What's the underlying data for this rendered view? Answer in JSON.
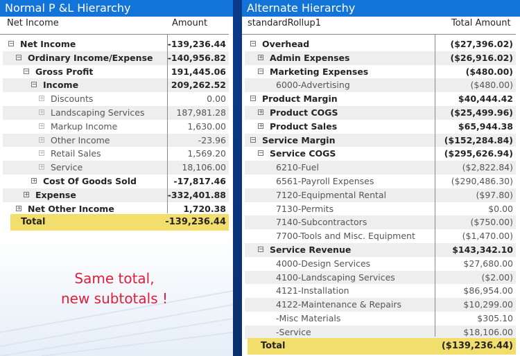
{
  "left": {
    "title": "Normal P &L Hierarchy",
    "col_label": "Net Income",
    "col_amount": "Amount",
    "rows": [
      {
        "label": "Net Income",
        "amount": "-139,236.44",
        "level": 0,
        "toggle": "⊟",
        "bold": true
      },
      {
        "label": "Ordinary Income/Expense",
        "amount": "-140,956.82",
        "level": 1,
        "toggle": "⊟",
        "bold": true
      },
      {
        "label": "Gross Profit",
        "amount": "191,445.06",
        "level": 2,
        "toggle": "⊟",
        "bold": true
      },
      {
        "label": "Income",
        "amount": "209,262.52",
        "level": 3,
        "toggle": "⊟",
        "bold": true
      },
      {
        "label": "Discounts",
        "amount": "0.00",
        "level": 4,
        "toggle": "⊞",
        "bold": false
      },
      {
        "label": "Landscaping Services",
        "amount": "187,981.28",
        "level": 4,
        "toggle": "⊞",
        "bold": false
      },
      {
        "label": "Markup Income",
        "amount": "1,630.00",
        "level": 4,
        "toggle": "⊞",
        "bold": false
      },
      {
        "label": "Other Income",
        "amount": "-23.96",
        "level": 4,
        "toggle": "⊞",
        "bold": false
      },
      {
        "label": "Retail Sales",
        "amount": "1,569.20",
        "level": 4,
        "toggle": "⊞",
        "bold": false
      },
      {
        "label": "Service",
        "amount": "18,106.00",
        "level": 4,
        "toggle": "⊞",
        "bold": false
      },
      {
        "label": "Cost Of Goods Sold",
        "amount": "-17,817.46",
        "level": 3,
        "toggle": "⊞",
        "bold": true
      },
      {
        "label": "Expense",
        "amount": "-332,401.88",
        "level": 2,
        "toggle": "⊞",
        "bold": true
      },
      {
        "label": "Net Other Income",
        "amount": "1,720.38",
        "level": 1,
        "toggle": "⊞",
        "bold": true
      }
    ],
    "total_label": "Total",
    "total_amount": "-139,236.44"
  },
  "right": {
    "title": "Alternate Hierarchy",
    "col_label": "standardRollup1",
    "col_amount": "Total Amount",
    "rows": [
      {
        "label": "Overhead",
        "amount": "($27,396.02)",
        "level": 0,
        "toggle": "⊟",
        "bold": true
      },
      {
        "label": "Admin Expenses",
        "amount": "($26,916.02)",
        "level": 1,
        "toggle": "⊞",
        "bold": true
      },
      {
        "label": "Marketing Expenses",
        "amount": "($480.00)",
        "level": 1,
        "toggle": "⊟",
        "bold": true
      },
      {
        "label": "6000-Advertising",
        "amount": "($480.00)",
        "level": 2,
        "toggle": "",
        "bold": false
      },
      {
        "label": "Product Margin",
        "amount": "$40,444.42",
        "level": 0,
        "toggle": "⊟",
        "bold": true
      },
      {
        "label": "Product COGS",
        "amount": "($25,499.96)",
        "level": 1,
        "toggle": "⊞",
        "bold": true
      },
      {
        "label": "Product Sales",
        "amount": "$65,944.38",
        "level": 1,
        "toggle": "⊞",
        "bold": true
      },
      {
        "label": "Service Margin",
        "amount": "($152,284.84)",
        "level": 0,
        "toggle": "⊟",
        "bold": true
      },
      {
        "label": "Service COGS",
        "amount": "($295,626.94)",
        "level": 1,
        "toggle": "⊟",
        "bold": true
      },
      {
        "label": "6210-Fuel",
        "amount": "($2,822.84)",
        "level": 2,
        "toggle": "",
        "bold": false
      },
      {
        "label": "6561-Payroll Expenses",
        "amount": "($290,486.30)",
        "level": 2,
        "toggle": "",
        "bold": false
      },
      {
        "label": "7120-Equipmental Rental",
        "amount": "($97.80)",
        "level": 2,
        "toggle": "",
        "bold": false
      },
      {
        "label": "7130-Permits",
        "amount": "$0.00",
        "level": 2,
        "toggle": "",
        "bold": false
      },
      {
        "label": "7140-Subcontractors",
        "amount": "($750.00)",
        "level": 2,
        "toggle": "",
        "bold": false
      },
      {
        "label": "7700-Tools and Misc. Equipment",
        "amount": "($1,470.00)",
        "level": 2,
        "toggle": "",
        "bold": false
      },
      {
        "label": "Service Revenue",
        "amount": "$143,342.10",
        "level": 1,
        "toggle": "⊟",
        "bold": true
      },
      {
        "label": "4000-Design Services",
        "amount": "$27,680.00",
        "level": 2,
        "toggle": "",
        "bold": false
      },
      {
        "label": "4100-Landscaping Services",
        "amount": "($2.00)",
        "level": 2,
        "toggle": "",
        "bold": false
      },
      {
        "label": "4121-Installation",
        "amount": "$86,954.00",
        "level": 2,
        "toggle": "",
        "bold": false
      },
      {
        "label": "4122-Maintenance & Repairs",
        "amount": "$10,299.00",
        "level": 2,
        "toggle": "",
        "bold": false
      },
      {
        "label": "-Misc Materials",
        "amount": "$305.10",
        "level": 2,
        "toggle": "",
        "bold": false
      },
      {
        "label": "-Service",
        "amount": "$18,106.00",
        "level": 2,
        "toggle": "",
        "bold": false
      }
    ],
    "total_label": "Total",
    "total_amount": "($139,236.44)"
  },
  "note": {
    "line1": "Same total,",
    "line2": "new subtotals !"
  },
  "colors": {
    "title_bar": "#1273d8",
    "total_highlight": "#f2de6c",
    "note_text": "#e11d3a",
    "separator": "#0b3a8c"
  }
}
